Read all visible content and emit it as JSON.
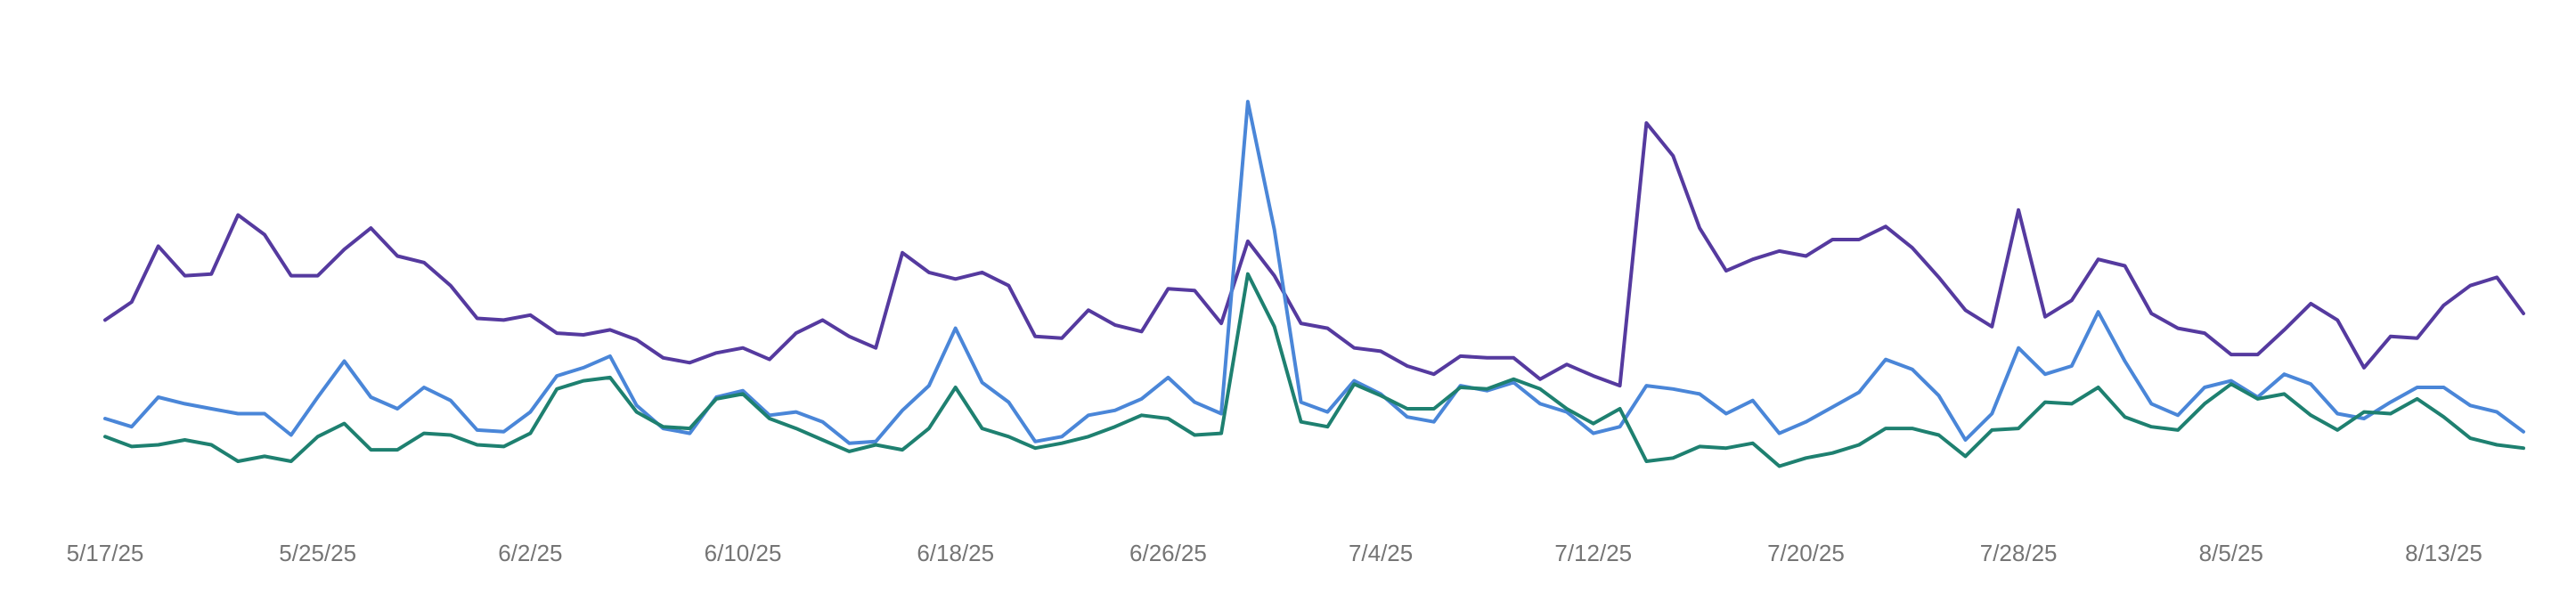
{
  "chart_data": {
    "type": "line",
    "categories": [
      "5/17/25",
      null,
      null,
      null,
      null,
      null,
      null,
      null,
      "5/25/25",
      null,
      null,
      null,
      null,
      null,
      null,
      null,
      "6/2/25",
      null,
      null,
      null,
      null,
      null,
      null,
      null,
      "6/10/25",
      null,
      null,
      null,
      null,
      null,
      null,
      null,
      "6/18/25",
      null,
      null,
      null,
      null,
      null,
      null,
      null,
      "6/26/25",
      null,
      null,
      null,
      null,
      null,
      null,
      null,
      "7/4/25",
      null,
      null,
      null,
      null,
      null,
      null,
      null,
      "7/12/25",
      null,
      null,
      null,
      null,
      null,
      null,
      null,
      "7/20/25",
      null,
      null,
      null,
      null,
      null,
      null,
      null,
      "7/28/25",
      null,
      null,
      null,
      null,
      null,
      null,
      null,
      "8/5/25",
      null,
      null,
      null,
      null,
      null,
      null,
      null,
      "8/13/25",
      null,
      null,
      null
    ],
    "series": [
      {
        "color": "#553a9f",
        "values": [
          105,
          116,
          150,
          132,
          133,
          169,
          157,
          132,
          132,
          148,
          161,
          144,
          140,
          126,
          106,
          105,
          108,
          97,
          96,
          99,
          93,
          82,
          79,
          85,
          88,
          81,
          97,
          105,
          95,
          88,
          146,
          134,
          130,
          134,
          126,
          95,
          94,
          111,
          102,
          98,
          124,
          123,
          103,
          153,
          132,
          103,
          100,
          88,
          86,
          77,
          72,
          83,
          82,
          82,
          69,
          78,
          71,
          65,
          225,
          205,
          161,
          135,
          142,
          147,
          144,
          154,
          154,
          162,
          149,
          131,
          111,
          101,
          172,
          107,
          117,
          142,
          138,
          109,
          100,
          97,
          84,
          84,
          99,
          115,
          105,
          76,
          95,
          94,
          114,
          126,
          131,
          109
        ]
      },
      {
        "color": "#4a86d8",
        "values": [
          45,
          40,
          58,
          54,
          51,
          48,
          48,
          35,
          58,
          80,
          58,
          51,
          64,
          56,
          38,
          37,
          49,
          71,
          76,
          83,
          53,
          39,
          36,
          58,
          62,
          47,
          49,
          43,
          30,
          31,
          50,
          65,
          100,
          67,
          55,
          31,
          34,
          47,
          50,
          57,
          70,
          55,
          48,
          238,
          160,
          55,
          49,
          68,
          60,
          46,
          43,
          65,
          62,
          67,
          54,
          49,
          36,
          40,
          65,
          63,
          60,
          48,
          56,
          36,
          43,
          52,
          61,
          81,
          75,
          59,
          32,
          48,
          88,
          72,
          77,
          110,
          80,
          54,
          47,
          64,
          68,
          58,
          72,
          66,
          48,
          45,
          55,
          64,
          64,
          53,
          49,
          37
        ]
      },
      {
        "color": "#1e8070",
        "values": [
          34,
          28,
          29,
          32,
          29,
          19,
          22,
          19,
          34,
          42,
          26,
          26,
          36,
          35,
          29,
          28,
          36,
          63,
          68,
          70,
          49,
          40,
          39,
          57,
          60,
          45,
          39,
          32,
          25,
          29,
          26,
          39,
          64,
          39,
          34,
          27,
          30,
          34,
          40,
          47,
          45,
          35,
          36,
          133,
          101,
          43,
          40,
          66,
          59,
          51,
          51,
          64,
          63,
          69,
          63,
          51,
          42,
          51,
          19,
          21,
          28,
          27,
          30,
          16,
          21,
          24,
          29,
          39,
          39,
          35,
          22,
          38,
          39,
          55,
          54,
          64,
          46,
          40,
          38,
          54,
          66,
          57,
          60,
          47,
          38,
          49,
          48,
          57,
          46,
          33,
          29,
          27
        ]
      }
    ],
    "ylim": [
      0,
      250
    ]
  }
}
